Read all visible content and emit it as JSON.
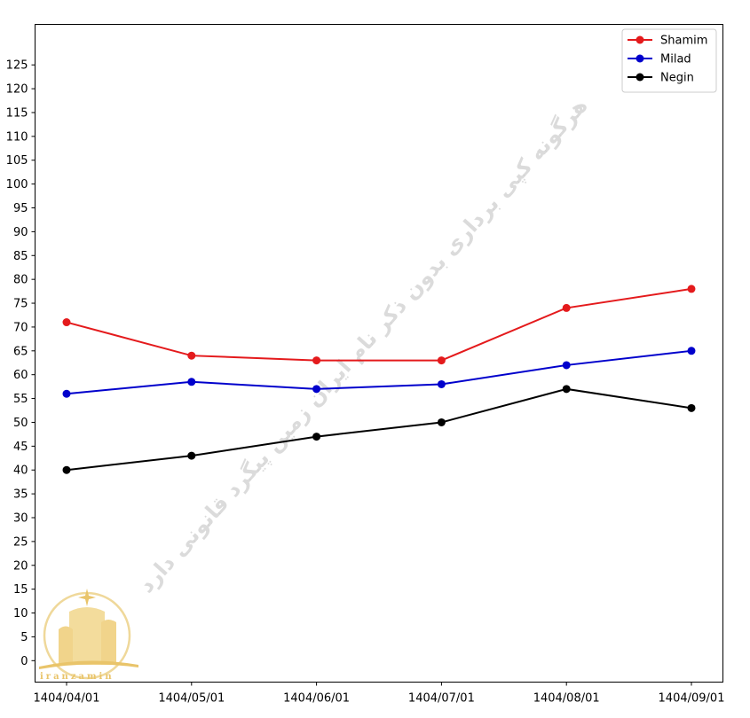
{
  "chart_data": {
    "type": "line",
    "title": "",
    "xlabel": "",
    "ylabel": "",
    "categories": [
      "1404/04/01",
      "1404/05/01",
      "1404/06/01",
      "1404/07/01",
      "1404/08/01",
      "1404/09/01"
    ],
    "series": [
      {
        "name": "Shamim",
        "color": "#e41a1c",
        "values": [
          71,
          64,
          63,
          63,
          74,
          78
        ]
      },
      {
        "name": "Milad",
        "color": "#0000cc",
        "values": [
          56,
          58.5,
          57,
          58,
          62,
          65
        ]
      },
      {
        "name": "Negin",
        "color": "#000000",
        "values": [
          40,
          43,
          47,
          50,
          57,
          53
        ]
      }
    ],
    "ylim": [
      -4.5,
      133.5
    ],
    "yticks": [
      0,
      5,
      10,
      15,
      20,
      25,
      30,
      35,
      40,
      45,
      50,
      55,
      60,
      65,
      70,
      75,
      80,
      85,
      90,
      95,
      100,
      105,
      110,
      115,
      120,
      125
    ],
    "grid": false,
    "legend_position": "top-right"
  },
  "watermark": {
    "text": "هرگونه کپی برداری بدون ذکر نام ایران زمین پیگرد قانونی دارد"
  },
  "logo": {
    "text": "iranzamin",
    "color": "#e9c46a"
  }
}
